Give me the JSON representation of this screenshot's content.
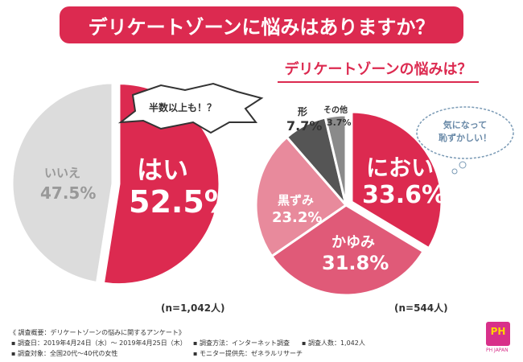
{
  "title": "デリケートゾーンに悩みはありますか？",
  "subtitle": "デリケートゾーンの悩みは？",
  "chart_data": [
    {
      "type": "pie",
      "series": [
        {
          "labels": [
            "はい",
            "いいえ"
          ],
          "values": [
            52.5,
            47.5
          ],
          "colors": [
            "#dc2a50",
            "#dcdcdc"
          ]
        }
      ],
      "n": "(n=1,042人)",
      "callout": "半数以上も！？"
    },
    {
      "type": "pie",
      "title": "デリケートゾーンの悩みは？",
      "series": [
        {
          "labels": [
            "におい",
            "かゆみ",
            "黒ずみ",
            "形",
            "その他"
          ],
          "values": [
            33.6,
            31.8,
            23.2,
            7.7,
            3.7
          ],
          "colors": [
            "#dc2a50",
            "#e05a78",
            "#e88a9c",
            "#555555",
            "#8a8a8a"
          ]
        }
      ],
      "n": "(n=544人)",
      "callout": "気になって恥ずかしい！"
    }
  ],
  "labels": {
    "yes": "はい",
    "yes_pct": "52.5%",
    "no": "いいえ",
    "no_pct": "47.5%",
    "smell": "におい",
    "smell_pct": "33.6%",
    "itch": "かゆみ",
    "itch_pct": "31.8%",
    "dark": "黒ずみ",
    "dark_pct": "23.2%",
    "shape": "形",
    "shape_pct": "7.7%",
    "other": "その他",
    "other_pct": "3.7%",
    "n1": "(n=1,042人)",
    "n2": "(n=544人)",
    "callout1": "半数以上も！？",
    "callout2a": "気になって",
    "callout2b": "恥ずかしい！"
  },
  "footer": {
    "l1": "《 調査概要：デリケートゾーンの悩みに関するアンケート》",
    "l2": "▪ 調査日：2019年4月24日（水）～ 2019年4月25日（木）",
    "l3": "▪ 調査対象：全国20代～40代の女性",
    "l4": "▪ 調査方法：インターネット調査",
    "l5": "▪ 調査人数：1,042人",
    "l6": "▪ モニター提供先：ゼネラルリサーチ",
    "logo": "PH",
    "logo_sub": "PH JAPAN"
  }
}
